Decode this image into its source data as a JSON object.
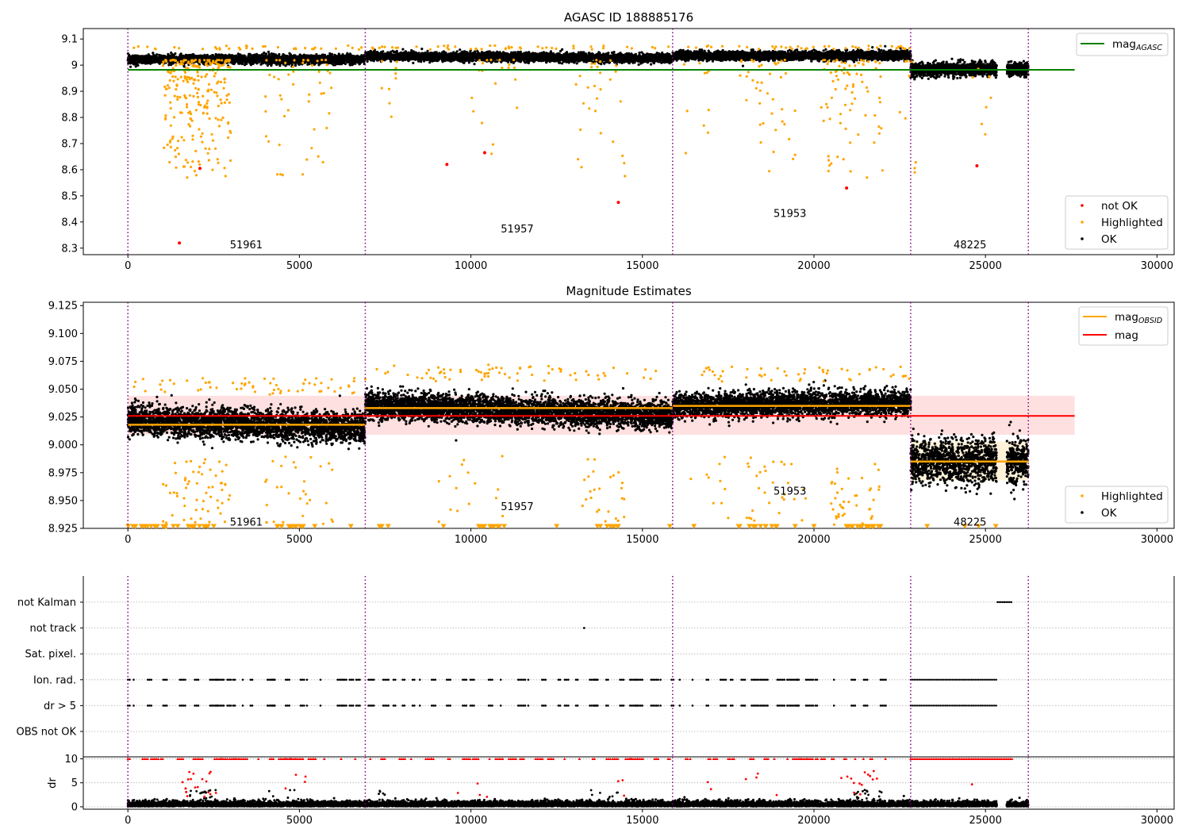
{
  "chart_data": [
    {
      "type": "scatter",
      "title": "AGASC ID 188885176",
      "xlim": [
        -1300,
        30500
      ],
      "ylim": [
        8.275,
        9.14
      ],
      "xticks": [
        0,
        5000,
        10000,
        15000,
        20000,
        25000,
        30000
      ],
      "yticks": [
        8.3,
        8.4,
        8.5,
        8.6,
        8.7,
        8.8,
        8.9,
        9.0,
        9.1
      ],
      "obsid_boundaries": [
        0,
        6920,
        15880,
        22820,
        26250
      ],
      "obsid_labels": [
        {
          "text": "51961",
          "x": 3450,
          "y": 8.315
        },
        {
          "text": "51957",
          "x": 11350,
          "y": 8.375
        },
        {
          "text": "51953",
          "x": 19300,
          "y": 8.435
        },
        {
          "text": "48225",
          "x": 24550,
          "y": 8.315
        }
      ],
      "agasc_mag": 8.982,
      "agasc_line_x": [
        0,
        27600
      ],
      "ok_segments": [
        {
          "x": [
            0,
            6920
          ],
          "y_start": 9.022,
          "y_end": 9.022,
          "spread": 0.018
        },
        {
          "x": [
            6920,
            15880
          ],
          "y_start": 9.035,
          "y_end": 9.026,
          "spread": 0.018
        },
        {
          "x": [
            15880,
            22820
          ],
          "y_start": 9.035,
          "y_end": 9.038,
          "spread": 0.018
        },
        {
          "x": [
            22820,
            25330
          ],
          "y_start": 8.984,
          "y_end": 8.984,
          "spread": 0.028
        },
        {
          "x": [
            25620,
            26250
          ],
          "y_start": 8.984,
          "y_end": 8.984,
          "spread": 0.028
        }
      ],
      "not_ok_points": [
        [
          1500,
          8.32
        ],
        [
          2100,
          8.605
        ],
        [
          9300,
          8.62
        ],
        [
          10400,
          8.665
        ],
        [
          14300,
          8.475
        ],
        [
          20950,
          8.53
        ],
        [
          24750,
          8.615
        ]
      ],
      "legend_lower": [
        "not OK",
        "Highlighted",
        "OK"
      ],
      "legend_upper": {
        "base": "mag",
        "sub": "AGASC"
      },
      "colors": {
        "ok": "#000000",
        "highlighted": "#ffa500",
        "not_ok": "#ff0000",
        "agasc": "#008000",
        "boundary": "#800080"
      }
    },
    {
      "type": "scatter",
      "title": "Magnitude Estimates",
      "xlim": [
        -1300,
        30500
      ],
      "ylim": [
        8.925,
        9.128
      ],
      "xticks": [
        0,
        5000,
        10000,
        15000,
        20000,
        25000,
        30000
      ],
      "yticks": [
        8.925,
        8.95,
        8.975,
        9.0,
        9.025,
        9.05,
        9.075,
        9.1,
        9.125
      ],
      "ytick_labels": [
        "8.925",
        "8.950",
        "8.975",
        "9.000",
        "9.025",
        "9.050",
        "9.075",
        "9.100",
        "9.125"
      ],
      "obsid_boundaries": [
        0,
        6920,
        15880,
        22820,
        26250
      ],
      "obsid_labels": [
        {
          "text": "51961",
          "x": 3450,
          "y": 8.931
        },
        {
          "text": "51957",
          "x": 11350,
          "y": 8.945
        },
        {
          "text": "51953",
          "x": 19300,
          "y": 8.959
        },
        {
          "text": "48225",
          "x": 24550,
          "y": 8.931
        }
      ],
      "mag": 9.026,
      "mag_band": [
        9.009,
        9.044
      ],
      "mag_line_x": [
        0,
        27600
      ],
      "obsid_mags": [
        {
          "x": [
            0,
            6920
          ],
          "mag": 9.018,
          "band": [
            9.013,
            9.023
          ]
        },
        {
          "x": [
            6920,
            15880
          ],
          "mag": 9.033,
          "band": [
            9.028,
            9.038
          ]
        },
        {
          "x": [
            15880,
            22820
          ],
          "mag": 9.035,
          "band": [
            9.03,
            9.04
          ]
        },
        {
          "x": [
            22820,
            26250
          ],
          "mag": 8.985,
          "band": [
            8.968,
            9.003
          ]
        }
      ],
      "ok_segments": [
        {
          "x": [
            0,
            6920
          ],
          "y_start": 9.022,
          "y_end": 9.015,
          "spread": 0.012
        },
        {
          "x": [
            6920,
            15880
          ],
          "y_start": 9.036,
          "y_end": 9.026,
          "spread": 0.011
        },
        {
          "x": [
            15880,
            22820
          ],
          "y_start": 9.035,
          "y_end": 9.038,
          "spread": 0.01
        },
        {
          "x": [
            22820,
            25330
          ],
          "y_start": 8.985,
          "y_end": 8.985,
          "spread": 0.018
        },
        {
          "x": [
            25620,
            26250
          ],
          "y_start": 8.985,
          "y_end": 8.985,
          "spread": 0.018
        }
      ],
      "legend_lower": [
        "Highlighted",
        "OK"
      ],
      "legend_upper": [
        {
          "base": "mag",
          "sub": "OBSID"
        },
        {
          "base": "mag",
          "sub": ""
        }
      ],
      "colors": {
        "ok": "#000000",
        "highlighted": "#ffa500",
        "mag": "#ff0000",
        "obsid_mag": "#ffa500",
        "boundary": "#800080"
      }
    },
    {
      "type": "scatter",
      "title": "",
      "xlim": [
        -1300,
        30500
      ],
      "flag_rows": [
        "not Kalman",
        "not track",
        "Sat. pixel.",
        "Ion. rad.",
        "dr > 5",
        "OBS not OK"
      ],
      "flag_ranges": {
        "not Kalman": [
          [
            25350,
            25800
          ]
        ],
        "not track": [
          [
            13300,
            13300
          ]
        ],
        "Ion. rad.": [
          [
            22820,
            25330
          ]
        ],
        "dr > 5": [
          [
            22820,
            25330
          ]
        ]
      },
      "flag_sparse_rows": [
        "Ion. rad.",
        "dr > 5"
      ],
      "flag_sparse_range": [
        0,
        22400
      ],
      "obsid_boundaries": [
        0,
        6920,
        15880,
        22820,
        26250
      ]
    },
    {
      "type": "scatter",
      "title": "",
      "xlim": [
        -1300,
        30500
      ],
      "ylim": [
        -0.5,
        10.4
      ],
      "ylabel": "dr",
      "xticks": [
        0,
        5000,
        10000,
        15000,
        20000,
        25000,
        30000
      ],
      "yticks": [
        0,
        5,
        10
      ],
      "dr_clip_value": 10,
      "dr_clip_range": [
        22820,
        25800
      ],
      "obsid_boundaries": [
        0,
        6920,
        15880,
        22820,
        26250
      ],
      "colors": {
        "ok": "#000000",
        "clipped": "#ff0000"
      }
    }
  ]
}
